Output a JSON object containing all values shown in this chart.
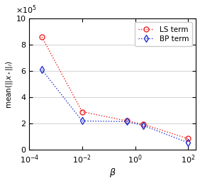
{
  "x": [
    0.0003,
    0.01,
    0.5,
    2.0,
    100.0
  ],
  "ls_term": [
    860000.0,
    290000.0,
    220000.0,
    195000.0,
    85000.0
  ],
  "bp_term": [
    610000.0,
    220000.0,
    215000.0,
    185000.0,
    55000.0
  ],
  "ls_color": "#ee2222",
  "bp_color": "#2233cc",
  "xlabel": "$\\beta$",
  "ylabel": "mean($||x_*||_i$)",
  "ylim": [
    0,
    1000000.0
  ],
  "ytick_vals": [
    0,
    200000.0,
    400000.0,
    600000.0,
    800000.0,
    1000000.0
  ],
  "ytick_labels": [
    "0",
    "2",
    "4",
    "6",
    "8",
    "10"
  ],
  "xtick_vals": [
    0.0001,
    0.01,
    1.0,
    100.0
  ],
  "xtick_labels": [
    "10$^{-4}$",
    "10$^{-2}$",
    "10$^{0}$",
    "10$^{2}$"
  ],
  "xlim_lo": 0.0001,
  "xlim_hi": 200.0,
  "ls_label": "LS term",
  "bp_label": "BP term",
  "exponent_label": "$\\times 10^5$",
  "figsize": [
    2.82,
    2.58
  ],
  "dpi": 100
}
